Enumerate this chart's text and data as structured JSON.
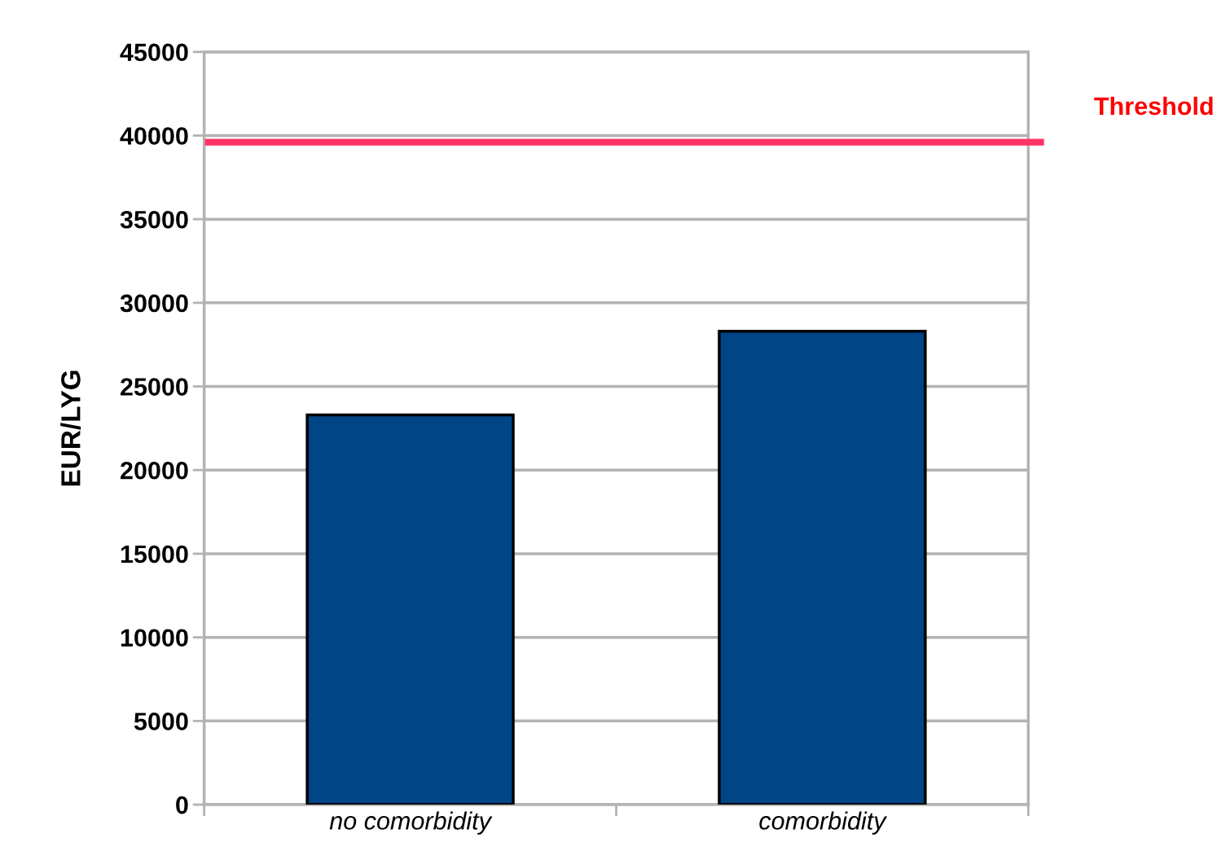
{
  "chart_data": {
    "type": "bar",
    "ylabel": "EUR/LYG",
    "categories": [
      "no comorbidity",
      "comorbidity"
    ],
    "values": [
      23300,
      28300
    ],
    "color": "#004586",
    "ylim": [
      0,
      45000
    ],
    "yticks": [
      0,
      5000,
      10000,
      15000,
      20000,
      25000,
      30000,
      35000,
      40000,
      45000
    ],
    "grid": "y",
    "ref_lines": [
      {
        "axis": "y",
        "value": 39600,
        "label": "Threshold",
        "color": "#ff3366"
      }
    ]
  }
}
